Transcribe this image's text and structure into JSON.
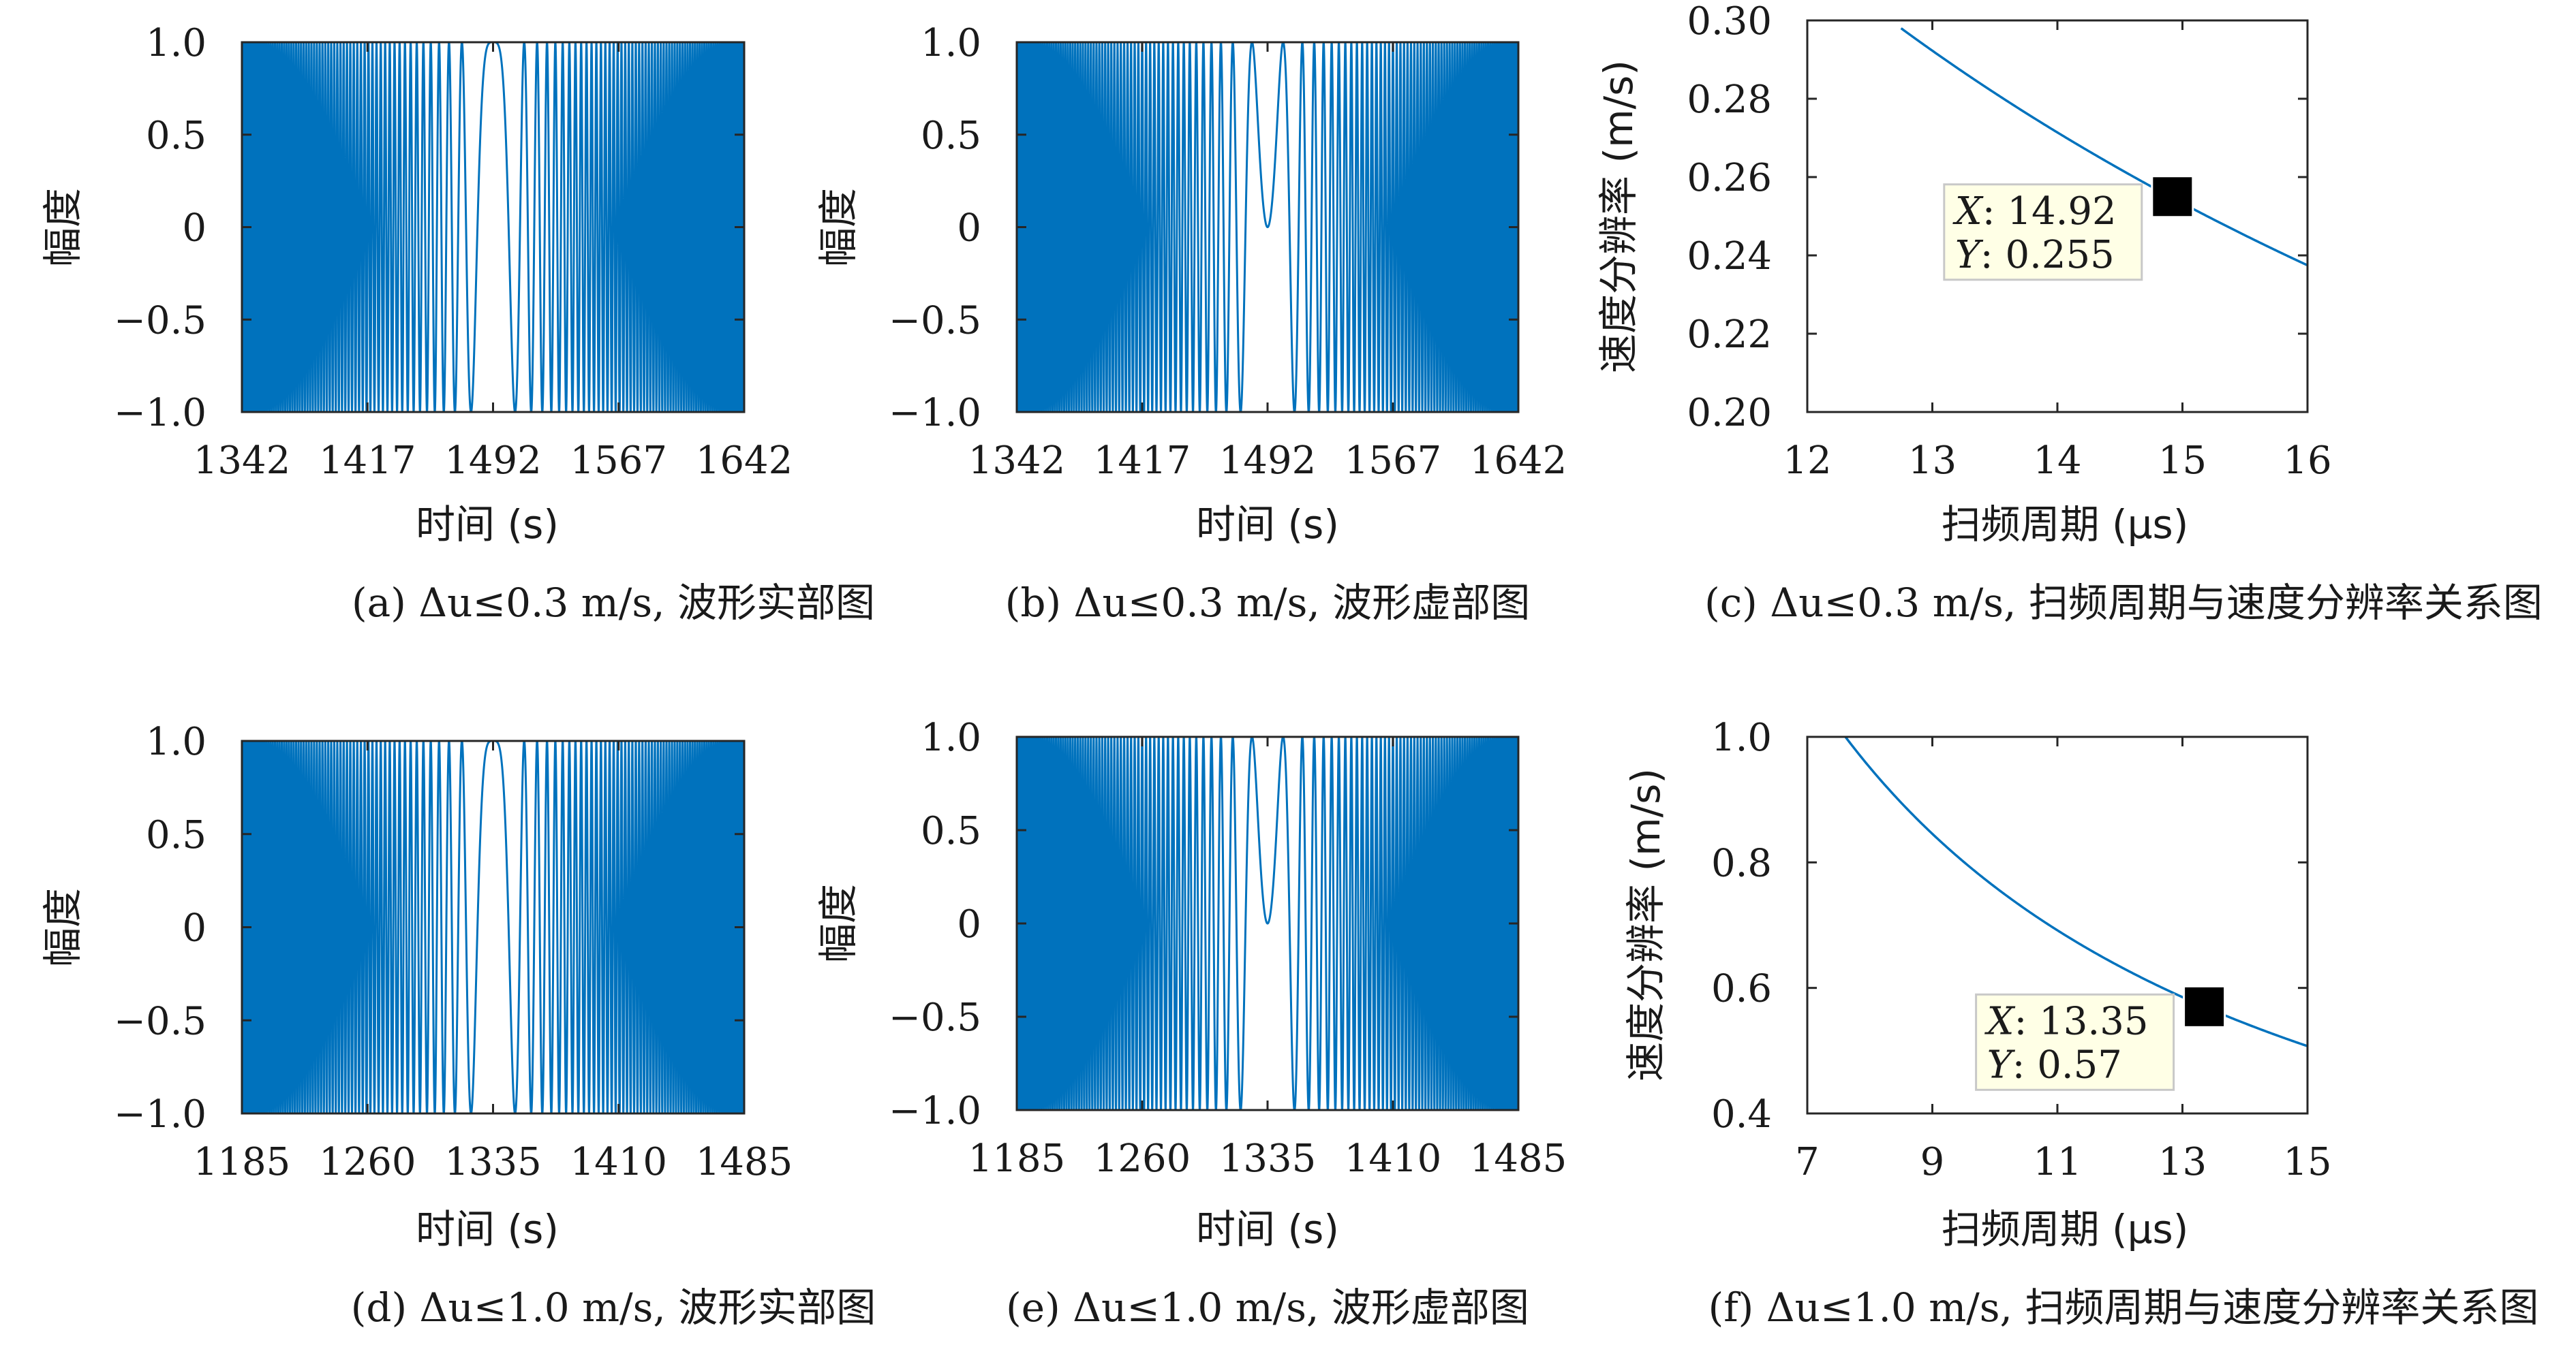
{
  "colors": {
    "line": "#0072bd",
    "axis": "#262626",
    "datatip_bg": "#ffffe6",
    "datatip_border": "#c8c8c8",
    "marker": "#000000"
  },
  "chart_data": [
    {
      "id": "a",
      "type": "line",
      "caption": "(a) Δu≤0.3 m/s, 波形实部图",
      "xlabel": "时间 (s)",
      "ylabel": "幅度",
      "xlim": [
        1342,
        1642
      ],
      "ylim": [
        -1.0,
        1.0
      ],
      "xticks": [
        1342,
        1417,
        1492,
        1567,
        1642
      ],
      "xtick_labels": [
        "1342",
        "1417",
        "1492",
        "1567",
        "1642"
      ],
      "yticks": [
        -1.0,
        -0.5,
        0,
        0.5,
        1.0
      ],
      "ytick_labels": [
        "−1.0",
        "−0.5",
        "0",
        "0.5",
        "1.0"
      ],
      "series": [
        {
          "name": "real part",
          "function": "cos",
          "center": 1492,
          "half_span": 150,
          "max_cycles": 130
        }
      ]
    },
    {
      "id": "b",
      "type": "line",
      "caption": "(b) Δu≤0.3 m/s, 波形虚部图",
      "xlabel": "时间 (s)",
      "ylabel": "幅度",
      "xlim": [
        1342,
        1642
      ],
      "ylim": [
        -1.0,
        1.0
      ],
      "xticks": [
        1342,
        1417,
        1492,
        1567,
        1642
      ],
      "xtick_labels": [
        "1342",
        "1417",
        "1492",
        "1567",
        "1642"
      ],
      "yticks": [
        -1.0,
        -0.5,
        0,
        0.5,
        1.0
      ],
      "ytick_labels": [
        "−1.0",
        "−0.5",
        "0",
        "0.5",
        "1.0"
      ],
      "series": [
        {
          "name": "imaginary part",
          "function": "sin",
          "center": 1492,
          "half_span": 150,
          "max_cycles": 130
        }
      ]
    },
    {
      "id": "c",
      "type": "line",
      "caption": "(c) Δu≤0.3 m/s, 扫频周期与速度分辨率关系图",
      "xlabel": "扫频周期 (μs)",
      "ylabel": "速度分辨率 (m/s)",
      "xlim": [
        12,
        16
      ],
      "ylim": [
        0.2,
        0.3
      ],
      "xticks": [
        12,
        13,
        14,
        15,
        16
      ],
      "xtick_labels": [
        "12",
        "13",
        "14",
        "15",
        "16"
      ],
      "yticks": [
        0.2,
        0.22,
        0.24,
        0.26,
        0.28,
        0.3
      ],
      "ytick_labels": [
        "0.20",
        "0.22",
        "0.24",
        "0.26",
        "0.28",
        "0.30"
      ],
      "series": [
        {
          "name": "resolution",
          "k": 3.7995,
          "x_start": 12.75,
          "x_end": 16
        }
      ],
      "datatip": {
        "x": 14.92,
        "y": 0.255,
        "x_label": "X",
        "y_label": "Y",
        "x_text": "14.92",
        "y_text": "0.255"
      }
    },
    {
      "id": "d",
      "type": "line",
      "caption": "(d) Δu≤1.0 m/s, 波形实部图",
      "xlabel": "时间 (s)",
      "ylabel": "幅度",
      "xlim": [
        1185,
        1485
      ],
      "ylim": [
        -1.0,
        1.0
      ],
      "xticks": [
        1185,
        1260,
        1335,
        1410,
        1485
      ],
      "xtick_labels": [
        "1185",
        "1260",
        "1335",
        "1410",
        "1485"
      ],
      "yticks": [
        -1.0,
        -0.5,
        0,
        0.5,
        1.0
      ],
      "ytick_labels": [
        "−1.0",
        "−0.5",
        "0",
        "0.5",
        "1.0"
      ],
      "series": [
        {
          "name": "real part",
          "function": "cos",
          "center": 1335,
          "half_span": 150,
          "max_cycles": 130
        }
      ]
    },
    {
      "id": "e",
      "type": "line",
      "caption": "(e) Δu≤1.0 m/s, 波形虚部图",
      "xlabel": "时间 (s)",
      "ylabel": "幅度",
      "xlim": [
        1185,
        1485
      ],
      "ylim": [
        -1.0,
        1.0
      ],
      "xticks": [
        1185,
        1260,
        1335,
        1410,
        1485
      ],
      "xtick_labels": [
        "1185",
        "1260",
        "1335",
        "1410",
        "1485"
      ],
      "yticks": [
        -1.0,
        -0.5,
        0,
        0.5,
        1.0
      ],
      "ytick_labels": [
        "−1.0",
        "−0.5",
        "0",
        "0.5",
        "1.0"
      ],
      "series": [
        {
          "name": "imaginary part",
          "function": "sin",
          "center": 1335,
          "half_span": 150,
          "max_cycles": 130
        }
      ]
    },
    {
      "id": "f",
      "type": "line",
      "caption": "(f) Δu≤1.0 m/s, 扫频周期与速度分辨率关系图",
      "xlabel": "扫频周期 (μs)",
      "ylabel": "速度分辨率 (m/s)",
      "xlim": [
        7,
        15
      ],
      "ylim": [
        0.4,
        1.0
      ],
      "xticks": [
        7,
        9,
        11,
        13,
        15
      ],
      "xtick_labels": [
        "7",
        "9",
        "11",
        "13",
        "15"
      ],
      "yticks": [
        0.4,
        0.6,
        0.8,
        1.0
      ],
      "ytick_labels": [
        "0.4",
        "0.6",
        "0.8",
        "1.0"
      ],
      "series": [
        {
          "name": "resolution",
          "k": 7.6095,
          "x_start": 7.6,
          "x_end": 15
        }
      ],
      "datatip": {
        "x": 13.35,
        "y": 0.57,
        "x_label": "X",
        "y_label": "Y",
        "x_text": "13.35",
        "y_text": "0.57"
      }
    }
  ]
}
